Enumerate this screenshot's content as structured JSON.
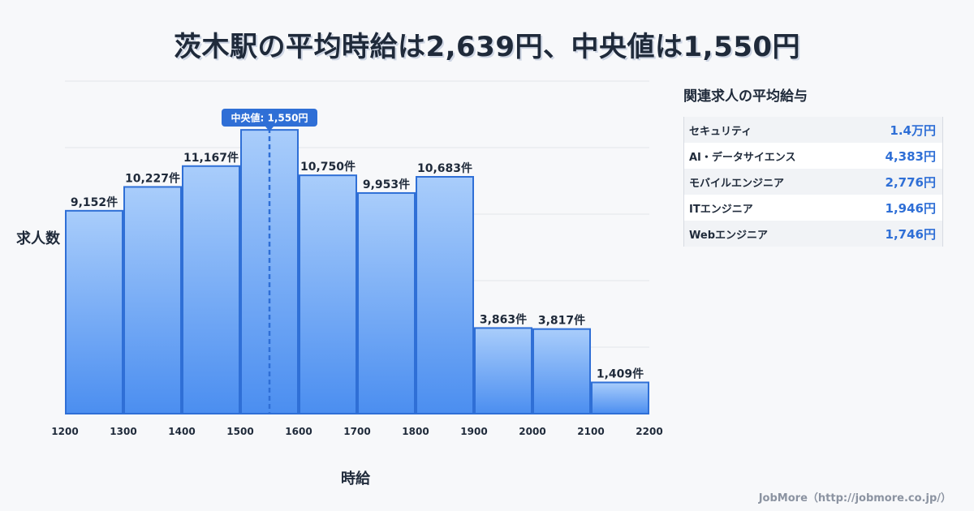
{
  "title": "茨木駅の平均時給は2,639円、中央値は1,550円",
  "chart_data": {
    "type": "bar",
    "xlabel": "時給",
    "ylabel": "求人数",
    "x_ticks": [
      1200,
      1300,
      1400,
      1500,
      1600,
      1700,
      1800,
      1900,
      2000,
      2100,
      2200
    ],
    "bins": [
      {
        "from": 1200,
        "to": 1300,
        "value": 9152,
        "label": "9,152件"
      },
      {
        "from": 1300,
        "to": 1400,
        "value": 10227,
        "label": "10,227件"
      },
      {
        "from": 1400,
        "to": 1500,
        "value": 11167,
        "label": "11,167件"
      },
      {
        "from": 1500,
        "to": 1600,
        "value": 12800,
        "label": ""
      },
      {
        "from": 1600,
        "to": 1700,
        "value": 10750,
        "label": "10,750件"
      },
      {
        "from": 1700,
        "to": 1800,
        "value": 9953,
        "label": "9,953件"
      },
      {
        "from": 1800,
        "to": 1900,
        "value": 10683,
        "label": "10,683件"
      },
      {
        "from": 1900,
        "to": 2000,
        "value": 3863,
        "label": "3,863件"
      },
      {
        "from": 2000,
        "to": 2100,
        "value": 3817,
        "label": "3,817件"
      },
      {
        "from": 2100,
        "to": 2200,
        "value": 1409,
        "label": "1,409件"
      }
    ],
    "median": {
      "value": 1550,
      "label": "中央値: 1,550円"
    },
    "xlim": [
      1200,
      2200
    ],
    "ylim": [
      0,
      15000
    ],
    "grid": true
  },
  "sidebar": {
    "title": "関連求人の平均給与",
    "rows": [
      {
        "name": "セキュリティ",
        "value": "1.4万円"
      },
      {
        "name": "AI・データサイエンス",
        "value": "4,383円"
      },
      {
        "name": "モバイルエンジニア",
        "value": "2,776円"
      },
      {
        "name": "ITエンジニア",
        "value": "1,946円"
      },
      {
        "name": "Webエンジニア",
        "value": "1,746円"
      }
    ]
  },
  "footer": "JobMore（http://jobmore.co.jp/）",
  "colors": {
    "bar_top": "#a9cdfb",
    "bar_bottom": "#4b8ef0",
    "bar_stroke": "#2f6fd6",
    "median": "#2f6fd6",
    "accent_text": "#2f6fd6"
  }
}
